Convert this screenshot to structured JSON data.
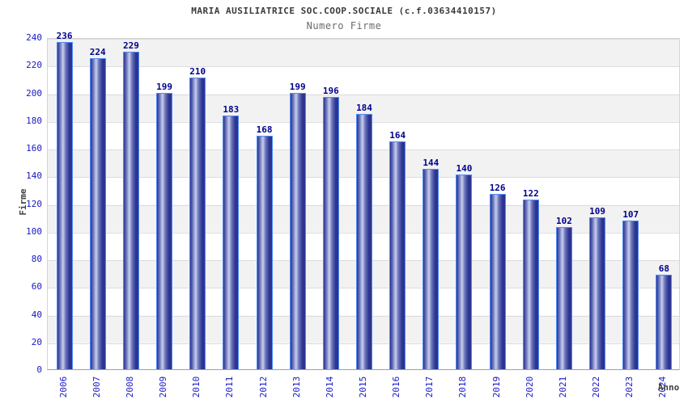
{
  "chart_data": {
    "type": "bar",
    "title": "MARIA AUSILIATRICE SOC.COOP.SOCIALE (c.f.03634410157)",
    "subtitle": "Numero Firme",
    "xlabel": "Anno",
    "ylabel": "Firme",
    "categories": [
      "2006",
      "2007",
      "2008",
      "2009",
      "2010",
      "2011",
      "2012",
      "2013",
      "2014",
      "2015",
      "2016",
      "2017",
      "2018",
      "2019",
      "2020",
      "2021",
      "2022",
      "2023",
      "2024"
    ],
    "values": [
      236,
      224,
      229,
      199,
      210,
      183,
      168,
      199,
      196,
      184,
      164,
      144,
      140,
      126,
      122,
      102,
      109,
      107,
      68
    ],
    "ylim": [
      0,
      240
    ],
    "yticks": [
      0,
      20,
      40,
      60,
      80,
      100,
      120,
      140,
      160,
      180,
      200,
      220,
      240
    ],
    "grid": "horizontal-bands",
    "legend": "none",
    "colors": {
      "bar_dark": "#2c3492",
      "bar_mid": "#6d77bb",
      "bar_light": "#c9cfee",
      "bar_border": "#4d8bf5",
      "axis_text": "#1717c4",
      "value_text": "#00008b",
      "title_text": "#3a3a3a",
      "subtitle_text": "#6b6b6b",
      "band_gray": "#f2f2f2",
      "band_white": "#ffffff",
      "gridline": "#dcdcdc"
    }
  }
}
